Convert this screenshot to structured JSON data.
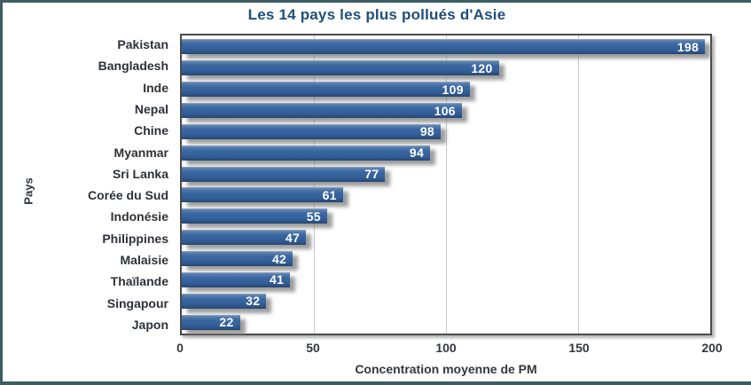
{
  "title": "Les 14 pays les plus pollués d'Asie",
  "chart_data": {
    "type": "bar",
    "orientation": "horizontal",
    "title": "Les 14 pays les plus pollués d'Asie",
    "categories": [
      "Pakistan",
      "Bangladesh",
      "Inde",
      "Nepal",
      "Chine",
      "Myanmar",
      "Sri Lanka",
      "Corée du Sud",
      "Indonésie",
      "Philippines",
      "Malaisie",
      "Thaïlande",
      "Singapour",
      "Japon"
    ],
    "values": [
      198,
      120,
      109,
      106,
      98,
      94,
      77,
      61,
      55,
      47,
      42,
      41,
      32,
      22
    ],
    "xlabel": "Concentration moyenne de PM",
    "ylabel": "Pays",
    "xlim": [
      0,
      200
    ],
    "xticks": [
      0,
      50,
      100,
      150,
      200
    ],
    "grid": true,
    "legend": false,
    "value_labels": "inside-end"
  },
  "colors": {
    "bar": "#35629d",
    "value_label": "#ffffff",
    "title": "#1f4e79",
    "axis_text": "#2d3138",
    "frame_border": "#3e5c64",
    "plot_border": "#4a4a4a",
    "gridline": "#c9c9c9"
  }
}
